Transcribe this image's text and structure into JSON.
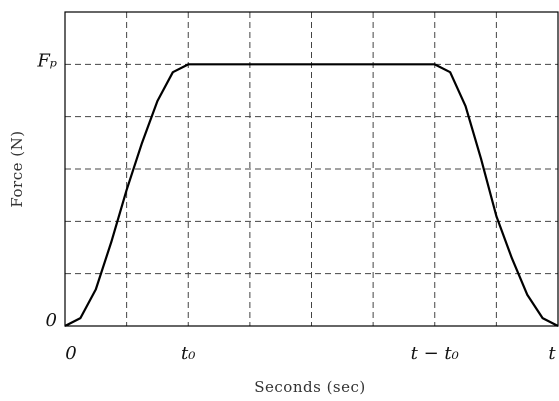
{
  "chart_data": {
    "type": "line",
    "x_label": "Seconds (sec)",
    "y_label": "Force (N)",
    "x": [
      0,
      0.25,
      0.5,
      0.75,
      1,
      1.25,
      1.5,
      1.75,
      2,
      3,
      4,
      5,
      6,
      6.25,
      6.5,
      6.75,
      7,
      7.25,
      7.5,
      7.75,
      8
    ],
    "values": [
      0,
      0.15,
      0.7,
      1.6,
      2.6,
      3.5,
      4.3,
      4.85,
      5,
      5,
      5,
      5,
      5,
      4.85,
      4.2,
      3.2,
      2.1,
      1.3,
      0.6,
      0.15,
      0
    ],
    "color": "#000000",
    "xlim": [
      0,
      8
    ],
    "ylim": [
      0,
      6
    ],
    "xticks": [
      0,
      {
        "value": 2,
        "label": "t₀"
      },
      {
        "value": 6,
        "label": "t − t₀"
      },
      {
        "value": 8,
        "label": "t"
      }
    ],
    "yticks": [
      0,
      {
        "value": 5,
        "label": "Fₚ"
      }
    ],
    "xgrid": [
      1,
      2,
      3,
      4,
      5,
      6,
      7
    ],
    "ygrid": [
      1,
      2,
      3,
      4,
      5
    ],
    "grid": true
  }
}
